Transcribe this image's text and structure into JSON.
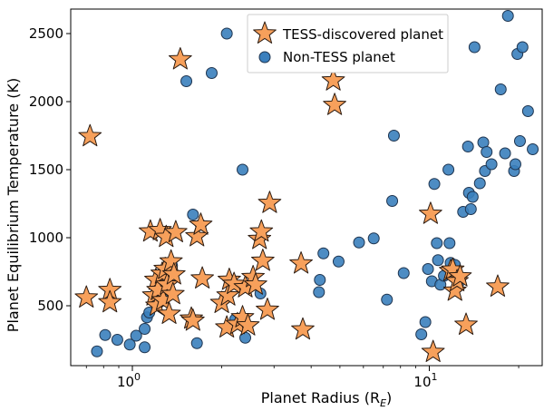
{
  "chart_data": {
    "type": "scatter",
    "xlabel": "Planet Radius (R",
    "xlabel_sub": "E",
    "xlabel_close": ")",
    "ylabel": "Planet Equilibrium Temperature (K)",
    "x_scale": "log",
    "xlim": [
      0.62,
      24
    ],
    "ylim": [
      60,
      2680
    ],
    "x_ticks": [
      {
        "value": 1,
        "label": "10",
        "sup": "0"
      },
      {
        "value": 10,
        "label": "10",
        "sup": "1"
      }
    ],
    "y_ticks": [
      500,
      1000,
      1500,
      2000,
      2500
    ],
    "legend_position": "top-center",
    "series": [
      {
        "name": "Non-TESS planet",
        "marker": "circle",
        "color": "#3a7fbd",
        "edge": "#1f3550",
        "points": [
          {
            "x": 0.76,
            "y": 165
          },
          {
            "x": 0.81,
            "y": 285
          },
          {
            "x": 0.89,
            "y": 250
          },
          {
            "x": 0.98,
            "y": 215
          },
          {
            "x": 1.03,
            "y": 280
          },
          {
            "x": 1.1,
            "y": 195
          },
          {
            "x": 1.1,
            "y": 330
          },
          {
            "x": 1.12,
            "y": 415
          },
          {
            "x": 1.14,
            "y": 450
          },
          {
            "x": 1.2,
            "y": 580
          },
          {
            "x": 1.25,
            "y": 620
          },
          {
            "x": 1.28,
            "y": 545
          },
          {
            "x": 1.33,
            "y": 735
          },
          {
            "x": 1.36,
            "y": 795
          },
          {
            "x": 1.52,
            "y": 2150
          },
          {
            "x": 1.6,
            "y": 1170
          },
          {
            "x": 1.65,
            "y": 225
          },
          {
            "x": 1.7,
            "y": 1095
          },
          {
            "x": 1.85,
            "y": 2210
          },
          {
            "x": 2.08,
            "y": 2500
          },
          {
            "x": 2.22,
            "y": 400
          },
          {
            "x": 2.35,
            "y": 1500
          },
          {
            "x": 2.4,
            "y": 265
          },
          {
            "x": 2.7,
            "y": 590
          },
          {
            "x": 3.2,
            "y": 2340
          },
          {
            "x": 4.25,
            "y": 600
          },
          {
            "x": 4.28,
            "y": 690
          },
          {
            "x": 4.4,
            "y": 885
          },
          {
            "x": 4.95,
            "y": 825
          },
          {
            "x": 5.8,
            "y": 965
          },
          {
            "x": 6.5,
            "y": 995
          },
          {
            "x": 7.2,
            "y": 545
          },
          {
            "x": 7.5,
            "y": 1270
          },
          {
            "x": 7.6,
            "y": 1750
          },
          {
            "x": 8.2,
            "y": 740
          },
          {
            "x": 9.4,
            "y": 290
          },
          {
            "x": 9.7,
            "y": 380
          },
          {
            "x": 9.9,
            "y": 770
          },
          {
            "x": 10.2,
            "y": 680
          },
          {
            "x": 10.4,
            "y": 1395
          },
          {
            "x": 10.6,
            "y": 960
          },
          {
            "x": 10.7,
            "y": 835
          },
          {
            "x": 10.9,
            "y": 655
          },
          {
            "x": 11.2,
            "y": 720
          },
          {
            "x": 11.6,
            "y": 1500
          },
          {
            "x": 11.7,
            "y": 960
          },
          {
            "x": 11.8,
            "y": 815
          },
          {
            "x": 12.2,
            "y": 800
          },
          {
            "x": 12.5,
            "y": 660
          },
          {
            "x": 13.0,
            "y": 1190
          },
          {
            "x": 13.5,
            "y": 1670
          },
          {
            "x": 13.6,
            "y": 1330
          },
          {
            "x": 13.8,
            "y": 1210
          },
          {
            "x": 14.0,
            "y": 1300
          },
          {
            "x": 14.2,
            "y": 2400
          },
          {
            "x": 14.8,
            "y": 1400
          },
          {
            "x": 15.2,
            "y": 1700
          },
          {
            "x": 15.4,
            "y": 1490
          },
          {
            "x": 15.6,
            "y": 1630
          },
          {
            "x": 16.2,
            "y": 1540
          },
          {
            "x": 17.4,
            "y": 2090
          },
          {
            "x": 18.0,
            "y": 1620
          },
          {
            "x": 18.4,
            "y": 2630
          },
          {
            "x": 19.3,
            "y": 1490
          },
          {
            "x": 19.5,
            "y": 1540
          },
          {
            "x": 19.8,
            "y": 2350
          },
          {
            "x": 20.2,
            "y": 1710
          },
          {
            "x": 20.6,
            "y": 2400
          },
          {
            "x": 21.5,
            "y": 1930
          },
          {
            "x": 22.3,
            "y": 1650
          }
        ]
      },
      {
        "name": "TESS-discovered planet",
        "marker": "star",
        "color": "#f7a05b",
        "edge": "#2a1a10",
        "points": [
          {
            "x": 0.7,
            "y": 560
          },
          {
            "x": 0.72,
            "y": 1745
          },
          {
            "x": 0.84,
            "y": 615
          },
          {
            "x": 0.84,
            "y": 525
          },
          {
            "x": 1.15,
            "y": 1045
          },
          {
            "x": 1.18,
            "y": 575
          },
          {
            "x": 1.2,
            "y": 690
          },
          {
            "x": 1.21,
            "y": 500
          },
          {
            "x": 1.22,
            "y": 615
          },
          {
            "x": 1.24,
            "y": 1055
          },
          {
            "x": 1.26,
            "y": 735
          },
          {
            "x": 1.27,
            "y": 540
          },
          {
            "x": 1.29,
            "y": 770
          },
          {
            "x": 1.3,
            "y": 1005
          },
          {
            "x": 1.31,
            "y": 655
          },
          {
            "x": 1.33,
            "y": 440
          },
          {
            "x": 1.35,
            "y": 825
          },
          {
            "x": 1.37,
            "y": 585
          },
          {
            "x": 1.38,
            "y": 730
          },
          {
            "x": 1.4,
            "y": 1040
          },
          {
            "x": 1.45,
            "y": 2310
          },
          {
            "x": 1.58,
            "y": 405
          },
          {
            "x": 1.6,
            "y": 390
          },
          {
            "x": 1.65,
            "y": 1010
          },
          {
            "x": 1.7,
            "y": 1095
          },
          {
            "x": 1.72,
            "y": 700
          },
          {
            "x": 2.0,
            "y": 520
          },
          {
            "x": 2.08,
            "y": 340
          },
          {
            "x": 2.1,
            "y": 575
          },
          {
            "x": 2.12,
            "y": 690
          },
          {
            "x": 2.2,
            "y": 660
          },
          {
            "x": 2.26,
            "y": 365
          },
          {
            "x": 2.35,
            "y": 415
          },
          {
            "x": 2.4,
            "y": 635
          },
          {
            "x": 2.45,
            "y": 355
          },
          {
            "x": 2.55,
            "y": 710
          },
          {
            "x": 2.6,
            "y": 655
          },
          {
            "x": 2.68,
            "y": 990
          },
          {
            "x": 2.72,
            "y": 1045
          },
          {
            "x": 2.75,
            "y": 830
          },
          {
            "x": 2.85,
            "y": 470
          },
          {
            "x": 2.9,
            "y": 1255
          },
          {
            "x": 3.7,
            "y": 810
          },
          {
            "x": 3.75,
            "y": 325
          },
          {
            "x": 4.75,
            "y": 2155
          },
          {
            "x": 4.8,
            "y": 1975
          },
          {
            "x": 10.1,
            "y": 1175
          },
          {
            "x": 10.3,
            "y": 160
          },
          {
            "x": 11.8,
            "y": 755
          },
          {
            "x": 12.0,
            "y": 765
          },
          {
            "x": 12.2,
            "y": 610
          },
          {
            "x": 12.4,
            "y": 680
          },
          {
            "x": 12.7,
            "y": 715
          },
          {
            "x": 13.3,
            "y": 360
          },
          {
            "x": 17.0,
            "y": 640
          }
        ]
      }
    ]
  }
}
